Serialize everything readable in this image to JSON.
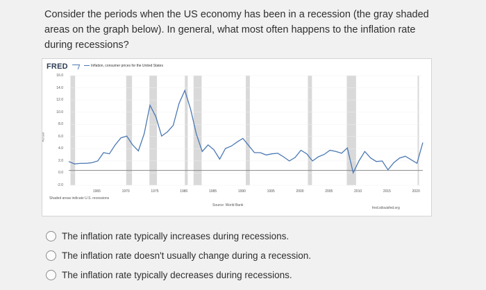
{
  "question": {
    "line1": "Consider the periods when the US economy has been in a recession (the gray shaded",
    "line2": "areas on the graph below). In general, what most often happens to the inflation rate",
    "line3": "during recessions?"
  },
  "chart": {
    "logo": "FRED",
    "legend": "Inflation, consumer prices for the United States",
    "ylabel": "Percent",
    "recession_note": "Shaded areas indicate U.S. recessions",
    "source": "Source: World Bank",
    "credit": "fred.stlouisfed.org",
    "colors": {
      "line": "#4a78b3",
      "recession": "#d9d9d9",
      "zero": "#888888"
    }
  },
  "chart_data": {
    "type": "line",
    "x": [
      1960,
      1961,
      1962,
      1963,
      1964,
      1965,
      1966,
      1967,
      1968,
      1969,
      1970,
      1971,
      1972,
      1973,
      1974,
      1975,
      1976,
      1977,
      1978,
      1979,
      1980,
      1981,
      1982,
      1983,
      1984,
      1985,
      1986,
      1987,
      1988,
      1989,
      1990,
      1991,
      1992,
      1993,
      1994,
      1995,
      1996,
      1997,
      1998,
      1999,
      2000,
      2001,
      2002,
      2003,
      2004,
      2005,
      2006,
      2007,
      2008,
      2009,
      2010,
      2011,
      2012,
      2013,
      2014,
      2015,
      2016,
      2017,
      2018,
      2019,
      2020,
      2021
    ],
    "series": [
      {
        "values": [
          1.5,
          1.1,
          1.2,
          1.2,
          1.3,
          1.6,
          3.0,
          2.8,
          4.3,
          5.5,
          5.8,
          4.3,
          3.3,
          6.2,
          11.0,
          9.1,
          5.8,
          6.5,
          7.6,
          11.3,
          13.5,
          10.3,
          6.1,
          3.2,
          4.3,
          3.5,
          1.9,
          3.7,
          4.1,
          4.8,
          5.4,
          4.2,
          3.0,
          3.0,
          2.6,
          2.8,
          2.9,
          2.3,
          1.6,
          2.2,
          3.4,
          2.8,
          1.6,
          2.3,
          2.7,
          3.4,
          3.2,
          2.9,
          3.8,
          -0.4,
          1.6,
          3.2,
          2.1,
          1.5,
          1.6,
          0.1,
          1.3,
          2.1,
          2.4,
          1.8,
          1.2,
          4.7
        ]
      }
    ],
    "recessions": [
      [
        1960.3,
        1961.1
      ],
      [
        1969.9,
        1970.9
      ],
      [
        1973.9,
        1975.2
      ],
      [
        1980.0,
        1980.5
      ],
      [
        1981.5,
        1982.9
      ],
      [
        1990.5,
        1991.2
      ],
      [
        2001.2,
        2001.9
      ],
      [
        2007.9,
        2009.5
      ],
      [
        2020.1,
        2020.3
      ]
    ],
    "xlim": [
      1960,
      2021
    ],
    "ylim": [
      -2.5,
      16
    ],
    "yticks": [
      "16.0",
      "14.0",
      "12.0",
      "10.0",
      "8.0",
      "6.0",
      "4.0",
      "2.0",
      "0.0",
      "-2.0"
    ],
    "xticks": [
      "1965",
      "1970",
      "1975",
      "1980",
      "1985",
      "1990",
      "1995",
      "2000",
      "2005",
      "2010",
      "2015",
      "2020"
    ]
  },
  "options": [
    {
      "label": "The inflation rate typically increases during recessions."
    },
    {
      "label": "The inflation rate doesn't usually change during a recession."
    },
    {
      "label": "The inflation rate typically decreases during recessions."
    }
  ]
}
